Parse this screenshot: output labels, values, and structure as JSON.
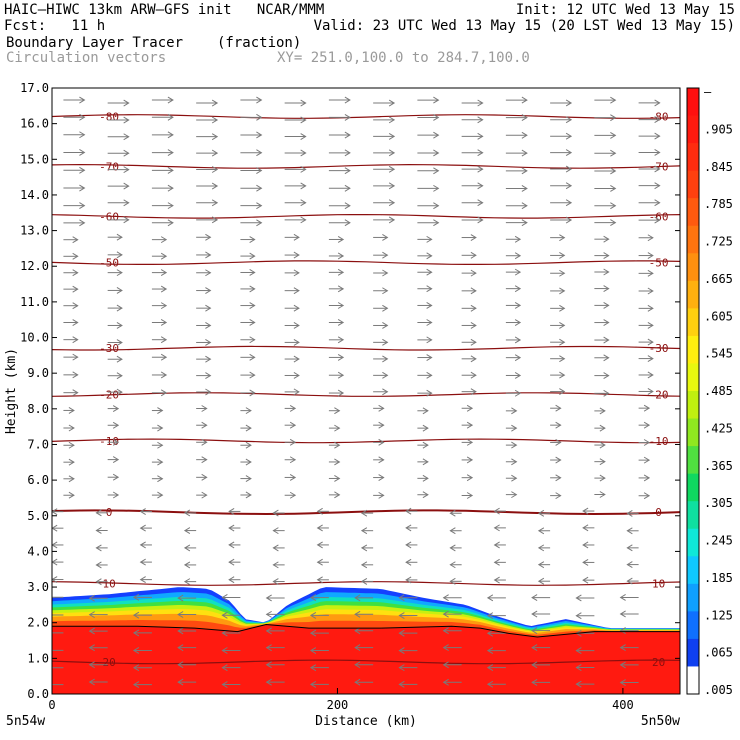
{
  "header": {
    "title": "HAIC–HIWC 13km ARW–GFS init   NCAR/MMM",
    "init": "Init: 12 UTC Wed 13 May 15",
    "fcst": "Fcst:   11 h",
    "valid": "Valid: 23 UTC Wed 13 May 15 (20 LST Wed 13 May 15)",
    "field": "Boundary Layer Tracer",
    "units": "(fraction)",
    "vectors": "Circulation vectors",
    "xy": "XY= 251.0,100.0 to 284.7,100.0"
  },
  "axes": {
    "xlabel": "Distance (km)",
    "ylabel": "Height (km)",
    "left_end": "5n54w",
    "right_end": "5n50w"
  },
  "colors": {
    "isotherm": "#8b0f0f",
    "vector": "#7a7a7a",
    "pbl_line": "#000000"
  },
  "chart_data": {
    "type": "heatmap",
    "xlim": [
      0,
      440
    ],
    "ylim": [
      0,
      17
    ],
    "x_ticks": [
      0,
      200,
      400
    ],
    "y_ticks": [
      "0.0",
      "1.0",
      "2.0",
      "3.0",
      "4.0",
      "5.0",
      "6.0",
      "7.0",
      "8.0",
      "9.0",
      "10.0",
      "11.0",
      "12.0",
      "13.0",
      "14.0",
      "15.0",
      "16.0",
      "17.0"
    ],
    "colorbar_labels": [
      "–",
      ".905",
      ".845",
      ".785",
      ".725",
      ".665",
      ".605",
      ".545",
      ".485",
      ".425",
      ".365",
      ".305",
      ".245",
      ".185",
      ".125",
      ".065",
      ".005"
    ],
    "colorbar_colors": [
      "#ff1010",
      "#ff1a10",
      "#ff2c10",
      "#ff4010",
      "#ff5a10",
      "#ff7410",
      "#ff9010",
      "#ffb010",
      "#ffd010",
      "#ffee10",
      "#e8f810",
      "#c0f010",
      "#90e820",
      "#50e040",
      "#10d860",
      "#10e0a0",
      "#10e8d8",
      "#10c8ff",
      "#10a0ff",
      "#1070ff",
      "#1040f0",
      "#ffffff"
    ],
    "isotherms": [
      {
        "label": "-80",
        "y": 16.2
      },
      {
        "label": "-70",
        "y": 14.8
      },
      {
        "label": "-60",
        "y": 13.4
      },
      {
        "label": "-50",
        "y": 12.1
      },
      {
        "label": "-30",
        "y": 9.7
      },
      {
        "label": "-20",
        "y": 8.4
      },
      {
        "label": "-10",
        "y": 7.1
      },
      {
        "label": "0",
        "y": 5.1
      },
      {
        "label": "10",
        "y": 3.1
      },
      {
        "label": "20",
        "y": 0.9
      }
    ],
    "tracer_top": [
      [
        0,
        2.7
      ],
      [
        40,
        2.8
      ],
      [
        90,
        3.0
      ],
      [
        110,
        2.95
      ],
      [
        125,
        2.6
      ],
      [
        135,
        2.1
      ],
      [
        150,
        2.0
      ],
      [
        165,
        2.5
      ],
      [
        190,
        3.0
      ],
      [
        230,
        2.95
      ],
      [
        260,
        2.7
      ],
      [
        290,
        2.5
      ],
      [
        310,
        2.2
      ],
      [
        335,
        1.9
      ],
      [
        360,
        2.1
      ],
      [
        390,
        1.85
      ],
      [
        440,
        1.85
      ]
    ],
    "pbl_height": [
      [
        0,
        1.9
      ],
      [
        60,
        1.9
      ],
      [
        100,
        1.85
      ],
      [
        130,
        1.75
      ],
      [
        150,
        1.95
      ],
      [
        180,
        1.85
      ],
      [
        230,
        1.85
      ],
      [
        280,
        1.9
      ],
      [
        300,
        1.85
      ],
      [
        320,
        1.7
      ],
      [
        340,
        1.6
      ],
      [
        380,
        1.75
      ],
      [
        440,
        1.75
      ]
    ]
  }
}
